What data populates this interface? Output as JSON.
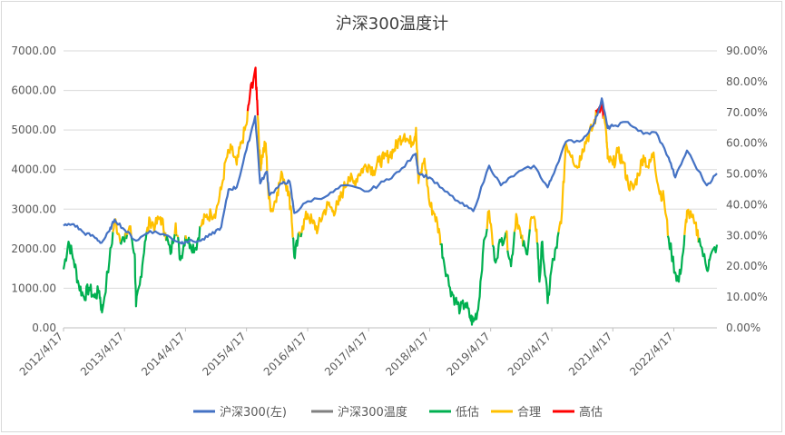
{
  "chart_data": {
    "type": "line",
    "title": "沪深300温度计",
    "ylim_left": [
      0,
      7000
    ],
    "ylim_right": [
      0,
      0.9
    ],
    "left_ticks": [
      "0.00",
      "1000.00",
      "2000.00",
      "3000.00",
      "4000.00",
      "5000.00",
      "6000.00",
      "7000.00"
    ],
    "right_ticks": [
      "0.00%",
      "10.00%",
      "20.00%",
      "30.00%",
      "40.00%",
      "50.00%",
      "60.00%",
      "70.00%",
      "80.00%",
      "90.00%"
    ],
    "x_ticks": [
      "2012/4/17",
      "2013/4/17",
      "2014/4/17",
      "2015/4/17",
      "2016/4/17",
      "2017/4/17",
      "2018/4/17",
      "2019/4/17",
      "2020/4/17",
      "2021/4/17",
      "2022/4/17"
    ],
    "x_range": [
      "2012/4/17",
      "2022/12/31"
    ],
    "grid": "horizontal",
    "legend_position": "bottom",
    "thresholds": {
      "low": 0.3,
      "high": 0.7
    },
    "series": [
      {
        "name": "沪深300(左)",
        "color": "#4472C4",
        "axis": "left",
        "points": [
          [
            "2012/4/17",
            2580
          ],
          [
            "2012/6/17",
            2620
          ],
          [
            "2012/8/17",
            2400
          ],
          [
            "2012/10/17",
            2300
          ],
          [
            "2012/12/1",
            2150
          ],
          [
            "2013/1/17",
            2450
          ],
          [
            "2013/2/17",
            2740
          ],
          [
            "2013/4/17",
            2480
          ],
          [
            "2013/6/25",
            2200
          ],
          [
            "2013/9/17",
            2450
          ],
          [
            "2013/12/17",
            2350
          ],
          [
            "2014/3/17",
            2150
          ],
          [
            "2014/4/17",
            2180
          ],
          [
            "2014/7/17",
            2200
          ],
          [
            "2014/9/17",
            2350
          ],
          [
            "2014/11/17",
            2550
          ],
          [
            "2014/12/31",
            3500
          ],
          [
            "2015/2/17",
            3550
          ],
          [
            "2015/4/17",
            4500
          ],
          [
            "2015/6/8",
            5350
          ],
          [
            "2015/7/8",
            3650
          ],
          [
            "2015/8/17",
            3950
          ],
          [
            "2015/9/1",
            3350
          ],
          [
            "2015/11/17",
            3650
          ],
          [
            "2015/12/31",
            3700
          ],
          [
            "2016/1/28",
            2900
          ],
          [
            "2016/4/17",
            3200
          ],
          [
            "2016/8/17",
            3350
          ],
          [
            "2016/11/17",
            3600
          ],
          [
            "2017/4/17",
            3450
          ],
          [
            "2017/7/17",
            3700
          ],
          [
            "2017/10/17",
            3950
          ],
          [
            "2018/1/24",
            4400
          ],
          [
            "2018/2/9",
            3900
          ],
          [
            "2018/4/17",
            3800
          ],
          [
            "2018/7/17",
            3450
          ],
          [
            "2018/10/17",
            3150
          ],
          [
            "2019/1/3",
            2950
          ],
          [
            "2019/4/8",
            4100
          ],
          [
            "2019/6/17",
            3600
          ],
          [
            "2019/9/17",
            3900
          ],
          [
            "2019/12/31",
            4100
          ],
          [
            "2020/3/23",
            3550
          ],
          [
            "2020/4/17",
            3800
          ],
          [
            "2020/7/10",
            4700
          ],
          [
            "2020/10/17",
            4750
          ],
          [
            "2020/12/31",
            5200
          ],
          [
            "2021/2/10",
            5800
          ],
          [
            "2021/3/17",
            5050
          ],
          [
            "2021/4/17",
            5100
          ],
          [
            "2021/7/17",
            5200
          ],
          [
            "2021/10/17",
            4900
          ],
          [
            "2021/12/31",
            4940
          ],
          [
            "2022/3/17",
            4300
          ],
          [
            "2022/4/26",
            3800
          ],
          [
            "2022/7/5",
            4480
          ],
          [
            "2022/10/31",
            3600
          ],
          [
            "2022/12/31",
            3900
          ]
        ]
      },
      {
        "name": "沪深300温度",
        "color": "#808080",
        "axis": "right"
      },
      {
        "name": "低估",
        "color": "#00B050",
        "axis": "right"
      },
      {
        "name": "合理",
        "color": "#FFC000",
        "axis": "right"
      },
      {
        "name": "高估",
        "color": "#FF0000",
        "axis": "right"
      }
    ],
    "temperature_points": [
      [
        "2012/4/17",
        0.19
      ],
      [
        "2012/5/17",
        0.28
      ],
      [
        "2012/6/17",
        0.22
      ],
      [
        "2012/7/17",
        0.14
      ],
      [
        "2012/8/17",
        0.1
      ],
      [
        "2012/9/17",
        0.13
      ],
      [
        "2012/10/17",
        0.1
      ],
      [
        "2012/11/17",
        0.12
      ],
      [
        "2012/12/3",
        0.05
      ],
      [
        "2013/1/17",
        0.22
      ],
      [
        "2013/2/17",
        0.35
      ],
      [
        "2013/3/17",
        0.3
      ],
      [
        "2013/4/17",
        0.28
      ],
      [
        "2013/5/17",
        0.33
      ],
      [
        "2013/6/17",
        0.24
      ],
      [
        "2013/6/25",
        0.07
      ],
      [
        "2013/7/17",
        0.14
      ],
      [
        "2013/8/17",
        0.28
      ],
      [
        "2013/9/17",
        0.35
      ],
      [
        "2013/10/17",
        0.33
      ],
      [
        "2013/11/17",
        0.36
      ],
      [
        "2013/12/17",
        0.31
      ],
      [
        "2014/1/17",
        0.24
      ],
      [
        "2014/2/17",
        0.34
      ],
      [
        "2014/3/17",
        0.22
      ],
      [
        "2014/4/17",
        0.3
      ],
      [
        "2014/5/17",
        0.27
      ],
      [
        "2014/6/17",
        0.26
      ],
      [
        "2014/7/17",
        0.33
      ],
      [
        "2014/8/17",
        0.36
      ],
      [
        "2014/9/17",
        0.37
      ],
      [
        "2014/10/17",
        0.38
      ],
      [
        "2014/11/17",
        0.45
      ],
      [
        "2014/12/17",
        0.55
      ],
      [
        "2015/1/17",
        0.58
      ],
      [
        "2015/2/17",
        0.53
      ],
      [
        "2015/3/17",
        0.6
      ],
      [
        "2015/4/17",
        0.66
      ],
      [
        "2015/5/8",
        0.76
      ],
      [
        "2015/6/8",
        0.84
      ],
      [
        "2015/6/20",
        0.74
      ],
      [
        "2015/7/8",
        0.52
      ],
      [
        "2015/7/20",
        0.56
      ],
      [
        "2015/8/10",
        0.6
      ],
      [
        "2015/8/28",
        0.42
      ],
      [
        "2015/9/17",
        0.38
      ],
      [
        "2015/10/17",
        0.44
      ],
      [
        "2015/11/17",
        0.5
      ],
      [
        "2015/12/17",
        0.46
      ],
      [
        "2016/1/10",
        0.38
      ],
      [
        "2016/1/28",
        0.23
      ],
      [
        "2016/2/17",
        0.28
      ],
      [
        "2016/3/17",
        0.33
      ],
      [
        "2016/4/17",
        0.37
      ],
      [
        "2016/5/17",
        0.34
      ],
      [
        "2016/6/17",
        0.32
      ],
      [
        "2016/7/17",
        0.37
      ],
      [
        "2016/8/17",
        0.4
      ],
      [
        "2016/9/17",
        0.38
      ],
      [
        "2016/10/17",
        0.4
      ],
      [
        "2016/11/17",
        0.45
      ],
      [
        "2016/12/17",
        0.49
      ],
      [
        "2017/1/17",
        0.47
      ],
      [
        "2017/2/17",
        0.5
      ],
      [
        "2017/3/17",
        0.52
      ],
      [
        "2017/4/17",
        0.53
      ],
      [
        "2017/5/17",
        0.51
      ],
      [
        "2017/6/17",
        0.54
      ],
      [
        "2017/7/17",
        0.55
      ],
      [
        "2017/8/17",
        0.56
      ],
      [
        "2017/9/17",
        0.58
      ],
      [
        "2017/10/17",
        0.61
      ],
      [
        "2017/11/17",
        0.63
      ],
      [
        "2017/12/17",
        0.6
      ],
      [
        "2018/1/17",
        0.62
      ],
      [
        "2018/1/25",
        0.65
      ],
      [
        "2018/2/9",
        0.47
      ],
      [
        "2018/3/17",
        0.55
      ],
      [
        "2018/4/17",
        0.4
      ],
      [
        "2018/5/17",
        0.37
      ],
      [
        "2018/6/17",
        0.3
      ],
      [
        "2018/7/10",
        0.22
      ],
      [
        "2018/8/17",
        0.13
      ],
      [
        "2018/9/17",
        0.09
      ],
      [
        "2018/10/17",
        0.06
      ],
      [
        "2018/11/17",
        0.08
      ],
      [
        "2018/12/17",
        0.03
      ],
      [
        "2019/1/3",
        0.02
      ],
      [
        "2019/2/1",
        0.06
      ],
      [
        "2019/3/1",
        0.24
      ],
      [
        "2019/4/8",
        0.38
      ],
      [
        "2019/5/10",
        0.22
      ],
      [
        "2019/6/17",
        0.28
      ],
      [
        "2019/7/17",
        0.31
      ],
      [
        "2019/8/17",
        0.2
      ],
      [
        "2019/9/17",
        0.37
      ],
      [
        "2019/10/17",
        0.29
      ],
      [
        "2019/11/17",
        0.24
      ],
      [
        "2019/12/17",
        0.36
      ],
      [
        "2020/1/17",
        0.32
      ],
      [
        "2020/2/3",
        0.15
      ],
      [
        "2020/2/20",
        0.28
      ],
      [
        "2020/3/23",
        0.08
      ],
      [
        "2020/4/17",
        0.2
      ],
      [
        "2020/5/17",
        0.26
      ],
      [
        "2020/6/17",
        0.38
      ],
      [
        "2020/7/10",
        0.6
      ],
      [
        "2020/8/17",
        0.56
      ],
      [
        "2020/9/17",
        0.52
      ],
      [
        "2020/10/17",
        0.58
      ],
      [
        "2020/11/17",
        0.62
      ],
      [
        "2020/12/17",
        0.65
      ],
      [
        "2021/1/17",
        0.71
      ],
      [
        "2021/2/10",
        0.73
      ],
      [
        "2021/3/10",
        0.62
      ],
      [
        "2021/3/17",
        0.55
      ],
      [
        "2021/4/17",
        0.53
      ],
      [
        "2021/5/17",
        0.57
      ],
      [
        "2021/6/17",
        0.54
      ],
      [
        "2021/7/17",
        0.47
      ],
      [
        "2021/8/17",
        0.45
      ],
      [
        "2021/9/17",
        0.5
      ],
      [
        "2021/10/17",
        0.56
      ],
      [
        "2021/11/17",
        0.52
      ],
      [
        "2021/12/17",
        0.57
      ],
      [
        "2022/1/17",
        0.45
      ],
      [
        "2022/2/17",
        0.42
      ],
      [
        "2022/3/17",
        0.29
      ],
      [
        "2022/4/26",
        0.18
      ],
      [
        "2022/5/17",
        0.15
      ],
      [
        "2022/6/17",
        0.27
      ],
      [
        "2022/7/5",
        0.38
      ],
      [
        "2022/8/17",
        0.34
      ],
      [
        "2022/9/17",
        0.29
      ],
      [
        "2022/10/31",
        0.19
      ],
      [
        "2022/11/17",
        0.22
      ],
      [
        "2022/12/31",
        0.27
      ]
    ]
  }
}
